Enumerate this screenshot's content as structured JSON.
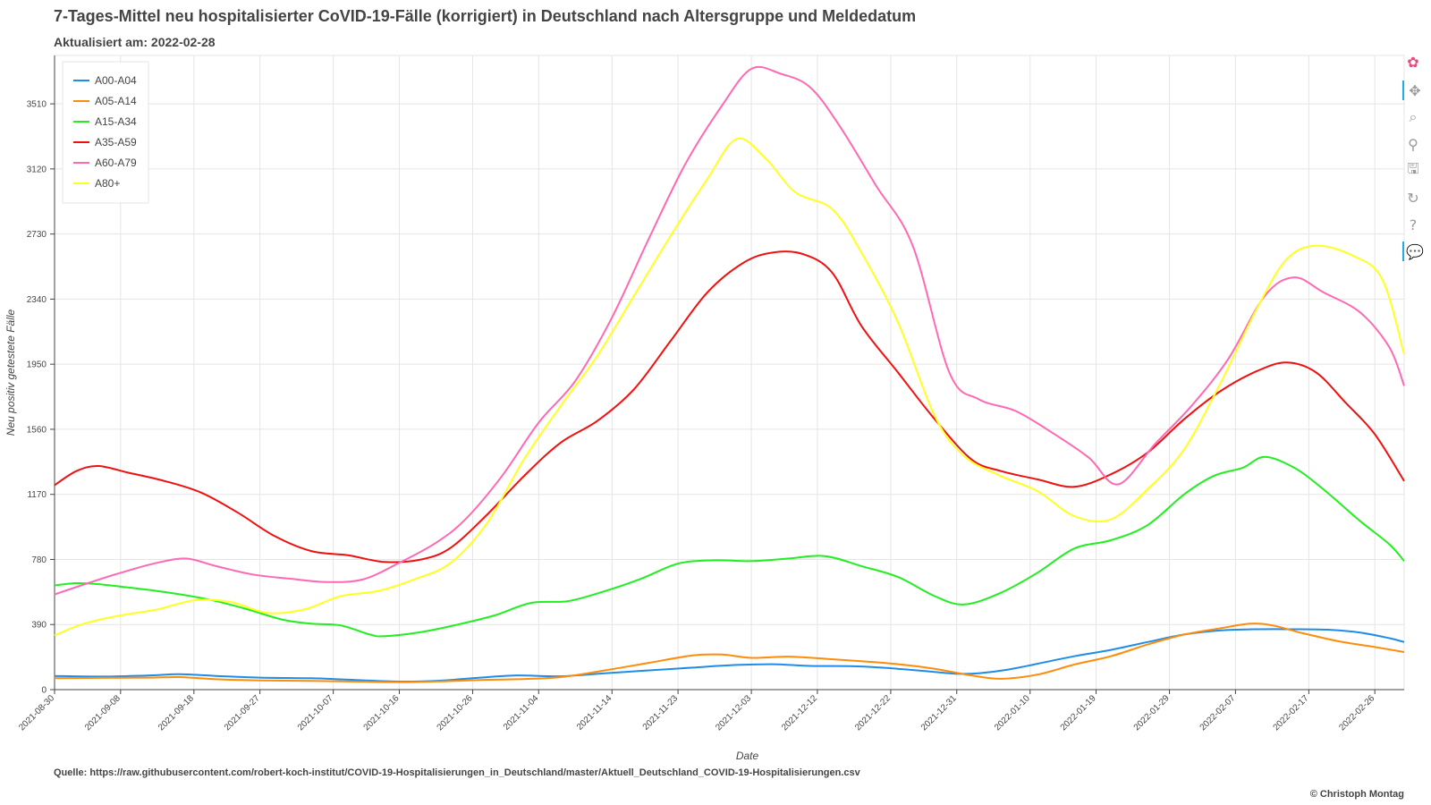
{
  "header": {
    "title": "7-Tages-Mittel neu hospitalisierter CoVID-19-Fälle (korrigiert) in Deutschland nach Altersgruppe und Meldedatum",
    "subtitle": "Aktualisiert am: 2022-02-28"
  },
  "footer": {
    "source": "Quelle: https://raw.githubusercontent.com/robert-koch-institut/COVID-19-Hospitalisierungen_in_Deutschland/master/Aktuell_Deutschland_COVID-19-Hospitalisierungen.csv",
    "copyright": "© Christoph Montag"
  },
  "toolbar": {
    "tools": [
      {
        "name": "bokeh-logo-icon",
        "glyph": "✿",
        "interactable": true
      },
      {
        "name": "pan-tool-icon",
        "glyph": "✥",
        "interactable": true
      },
      {
        "name": "box-zoom-tool-icon",
        "glyph": "⌕",
        "interactable": true
      },
      {
        "name": "wheel-zoom-tool-icon",
        "glyph": "⚲",
        "interactable": true
      },
      {
        "name": "save-tool-icon",
        "glyph": "🖫",
        "interactable": true
      },
      {
        "name": "reset-tool-icon",
        "glyph": "↻",
        "interactable": true
      },
      {
        "name": "help-tool-icon",
        "glyph": "?",
        "interactable": true
      },
      {
        "name": "hover-tool-icon",
        "glyph": "💬",
        "interactable": true
      }
    ]
  },
  "chart_data": {
    "type": "line",
    "xlabel": "Date",
    "ylabel": "Neu positiv getestete Fälle",
    "x_range": [
      "2021-08-30",
      "2022-03-02"
    ],
    "ylim": [
      0,
      3800
    ],
    "y_ticks": [
      0,
      390,
      780,
      1170,
      1560,
      1950,
      2340,
      2730,
      3120,
      3510
    ],
    "x_ticks": [
      "2021-08-30",
      "2021-09-08",
      "2021-09-18",
      "2021-09-27",
      "2021-10-07",
      "2021-10-16",
      "2021-10-26",
      "2021-11-04",
      "2021-11-14",
      "2021-11-23",
      "2021-12-03",
      "2021-12-12",
      "2021-12-22",
      "2021-12-31",
      "2022-01-10",
      "2022-01-19",
      "2022-01-29",
      "2022-02-07",
      "2022-02-17",
      "2022-02-26"
    ],
    "grid": true,
    "legend_position": "top-left",
    "series": [
      {
        "name": "A00-A04",
        "color": "#1f8de8",
        "points": [
          [
            "2021-08-30",
            82
          ],
          [
            "2021-09-05",
            78
          ],
          [
            "2021-09-12",
            85
          ],
          [
            "2021-09-16",
            92
          ],
          [
            "2021-09-21",
            82
          ],
          [
            "2021-09-27",
            72
          ],
          [
            "2021-10-04",
            68
          ],
          [
            "2021-10-10",
            58
          ],
          [
            "2021-10-16",
            48
          ],
          [
            "2021-10-22",
            55
          ],
          [
            "2021-10-27",
            72
          ],
          [
            "2021-11-01",
            85
          ],
          [
            "2021-11-07",
            80
          ],
          [
            "2021-11-13",
            98
          ],
          [
            "2021-11-19",
            115
          ],
          [
            "2021-11-25",
            132
          ],
          [
            "2021-12-01",
            148
          ],
          [
            "2021-12-06",
            152
          ],
          [
            "2021-12-11",
            142
          ],
          [
            "2021-12-17",
            140
          ],
          [
            "2021-12-22",
            128
          ],
          [
            "2021-12-27",
            110
          ],
          [
            "2021-12-31",
            95
          ],
          [
            "2022-01-03",
            98
          ],
          [
            "2022-01-07",
            120
          ],
          [
            "2022-01-11",
            155
          ],
          [
            "2022-01-16",
            200
          ],
          [
            "2022-01-21",
            238
          ],
          [
            "2022-01-26",
            285
          ],
          [
            "2022-01-31",
            330
          ],
          [
            "2022-02-05",
            355
          ],
          [
            "2022-02-10",
            362
          ],
          [
            "2022-02-15",
            362
          ],
          [
            "2022-02-20",
            358
          ],
          [
            "2022-02-24",
            342
          ],
          [
            "2022-02-28",
            308
          ],
          [
            "2022-03-02",
            285
          ]
        ]
      },
      {
        "name": "A05-A14",
        "color": "#ff8c0a",
        "points": [
          [
            "2021-08-30",
            68
          ],
          [
            "2021-09-05",
            70
          ],
          [
            "2021-09-12",
            72
          ],
          [
            "2021-09-16",
            75
          ],
          [
            "2021-09-21",
            62
          ],
          [
            "2021-09-27",
            55
          ],
          [
            "2021-10-04",
            52
          ],
          [
            "2021-10-10",
            48
          ],
          [
            "2021-10-16",
            45
          ],
          [
            "2021-10-22",
            50
          ],
          [
            "2021-10-27",
            58
          ],
          [
            "2021-11-01",
            62
          ],
          [
            "2021-11-07",
            75
          ],
          [
            "2021-11-13",
            115
          ],
          [
            "2021-11-19",
            160
          ],
          [
            "2021-11-25",
            205
          ],
          [
            "2021-11-29",
            210
          ],
          [
            "2021-12-03",
            190
          ],
          [
            "2021-12-08",
            198
          ],
          [
            "2021-12-13",
            185
          ],
          [
            "2021-12-18",
            170
          ],
          [
            "2021-12-23",
            152
          ],
          [
            "2021-12-28",
            125
          ],
          [
            "2022-01-02",
            85
          ],
          [
            "2022-01-06",
            65
          ],
          [
            "2022-01-11",
            90
          ],
          [
            "2022-01-16",
            150
          ],
          [
            "2022-01-21",
            200
          ],
          [
            "2022-01-26",
            270
          ],
          [
            "2022-01-31",
            330
          ],
          [
            "2022-02-05",
            368
          ],
          [
            "2022-02-09",
            395
          ],
          [
            "2022-02-12",
            385
          ],
          [
            "2022-02-16",
            340
          ],
          [
            "2022-02-21",
            290
          ],
          [
            "2022-02-26",
            255
          ],
          [
            "2022-03-02",
            225
          ]
        ]
      },
      {
        "name": "A15-A34",
        "color": "#22ee22",
        "points": [
          [
            "2021-08-30",
            625
          ],
          [
            "2021-09-02",
            638
          ],
          [
            "2021-09-05",
            632
          ],
          [
            "2021-09-09",
            612
          ],
          [
            "2021-09-14",
            585
          ],
          [
            "2021-09-20",
            540
          ],
          [
            "2021-09-25",
            485
          ],
          [
            "2021-09-30",
            420
          ],
          [
            "2021-10-04",
            395
          ],
          [
            "2021-10-08",
            385
          ],
          [
            "2021-10-12",
            330
          ],
          [
            "2021-10-14",
            320
          ],
          [
            "2021-10-19",
            345
          ],
          [
            "2021-10-24",
            390
          ],
          [
            "2021-10-29",
            445
          ],
          [
            "2021-11-03",
            520
          ],
          [
            "2021-11-08",
            530
          ],
          [
            "2021-11-13",
            590
          ],
          [
            "2021-11-18",
            665
          ],
          [
            "2021-11-23",
            755
          ],
          [
            "2021-11-28",
            775
          ],
          [
            "2021-12-03",
            770
          ],
          [
            "2021-12-08",
            785
          ],
          [
            "2021-12-13",
            800
          ],
          [
            "2021-12-18",
            740
          ],
          [
            "2021-12-23",
            675
          ],
          [
            "2021-12-28",
            560
          ],
          [
            "2022-01-01",
            510
          ],
          [
            "2022-01-06",
            580
          ],
          [
            "2022-01-11",
            700
          ],
          [
            "2022-01-16",
            845
          ],
          [
            "2022-01-21",
            895
          ],
          [
            "2022-01-26",
            985
          ],
          [
            "2022-01-31",
            1170
          ],
          [
            "2022-02-04",
            1280
          ],
          [
            "2022-02-08",
            1330
          ],
          [
            "2022-02-11",
            1395
          ],
          [
            "2022-02-15",
            1330
          ],
          [
            "2022-02-19",
            1200
          ],
          [
            "2022-02-24",
            1010
          ],
          [
            "2022-02-28",
            870
          ],
          [
            "2022-03-02",
            770
          ]
        ]
      },
      {
        "name": "A35-A59",
        "color": "#f01010",
        "points": [
          [
            "2021-08-30",
            1225
          ],
          [
            "2021-09-02",
            1310
          ],
          [
            "2021-09-05",
            1340
          ],
          [
            "2021-09-09",
            1300
          ],
          [
            "2021-09-14",
            1250
          ],
          [
            "2021-09-19",
            1180
          ],
          [
            "2021-09-24",
            1060
          ],
          [
            "2021-09-29",
            920
          ],
          [
            "2021-10-04",
            830
          ],
          [
            "2021-10-09",
            805
          ],
          [
            "2021-10-14",
            765
          ],
          [
            "2021-10-19",
            780
          ],
          [
            "2021-10-23",
            850
          ],
          [
            "2021-10-28",
            1050
          ],
          [
            "2021-11-02",
            1280
          ],
          [
            "2021-11-07",
            1480
          ],
          [
            "2021-11-12",
            1610
          ],
          [
            "2021-11-17",
            1800
          ],
          [
            "2021-11-22",
            2090
          ],
          [
            "2021-11-27",
            2380
          ],
          [
            "2021-12-02",
            2560
          ],
          [
            "2021-12-06",
            2620
          ],
          [
            "2021-12-10",
            2610
          ],
          [
            "2021-12-14",
            2500
          ],
          [
            "2021-12-18",
            2180
          ],
          [
            "2021-12-23",
            1900
          ],
          [
            "2021-12-28",
            1620
          ],
          [
            "2022-01-02",
            1380
          ],
          [
            "2022-01-06",
            1310
          ],
          [
            "2022-01-11",
            1260
          ],
          [
            "2022-01-16",
            1215
          ],
          [
            "2022-01-21",
            1290
          ],
          [
            "2022-01-26",
            1420
          ],
          [
            "2022-01-31",
            1620
          ],
          [
            "2022-02-05",
            1790
          ],
          [
            "2022-02-10",
            1910
          ],
          [
            "2022-02-14",
            1960
          ],
          [
            "2022-02-18",
            1900
          ],
          [
            "2022-02-22",
            1720
          ],
          [
            "2022-02-26",
            1530
          ],
          [
            "2022-03-02",
            1250
          ]
        ]
      },
      {
        "name": "A60-A79",
        "color": "#ff69b4",
        "points": [
          [
            "2021-08-30",
            570
          ],
          [
            "2021-09-03",
            630
          ],
          [
            "2021-09-08",
            700
          ],
          [
            "2021-09-13",
            760
          ],
          [
            "2021-09-17",
            785
          ],
          [
            "2021-09-21",
            740
          ],
          [
            "2021-09-26",
            690
          ],
          [
            "2021-10-01",
            665
          ],
          [
            "2021-10-06",
            645
          ],
          [
            "2021-10-11",
            660
          ],
          [
            "2021-10-16",
            760
          ],
          [
            "2021-10-21",
            880
          ],
          [
            "2021-10-25",
            1020
          ],
          [
            "2021-10-30",
            1280
          ],
          [
            "2021-11-04",
            1600
          ],
          [
            "2021-11-09",
            1850
          ],
          [
            "2021-11-14",
            2230
          ],
          [
            "2021-11-19",
            2700
          ],
          [
            "2021-11-24",
            3150
          ],
          [
            "2021-11-29",
            3500
          ],
          [
            "2021-12-03",
            3720
          ],
          [
            "2021-12-07",
            3690
          ],
          [
            "2021-12-11",
            3610
          ],
          [
            "2021-12-15",
            3380
          ],
          [
            "2021-12-20",
            3020
          ],
          [
            "2021-12-25",
            2660
          ],
          [
            "2021-12-30",
            1900
          ],
          [
            "2022-01-03",
            1740
          ],
          [
            "2022-01-08",
            1670
          ],
          [
            "2022-01-13",
            1540
          ],
          [
            "2022-01-18",
            1390
          ],
          [
            "2022-01-22",
            1230
          ],
          [
            "2022-01-27",
            1470
          ],
          [
            "2022-02-01",
            1700
          ],
          [
            "2022-02-06",
            1980
          ],
          [
            "2022-02-11",
            2360
          ],
          [
            "2022-02-15",
            2470
          ],
          [
            "2022-02-19",
            2380
          ],
          [
            "2022-02-24",
            2260
          ],
          [
            "2022-02-28",
            2050
          ],
          [
            "2022-03-02",
            1820
          ]
        ]
      },
      {
        "name": "A80+",
        "color": "#ffff22",
        "points": [
          [
            "2021-08-30",
            325
          ],
          [
            "2021-09-03",
            395
          ],
          [
            "2021-09-08",
            445
          ],
          [
            "2021-09-13",
            480
          ],
          [
            "2021-09-18",
            535
          ],
          [
            "2021-09-23",
            525
          ],
          [
            "2021-09-28",
            460
          ],
          [
            "2021-10-03",
            480
          ],
          [
            "2021-10-08",
            560
          ],
          [
            "2021-10-13",
            590
          ],
          [
            "2021-10-18",
            660
          ],
          [
            "2021-10-23",
            760
          ],
          [
            "2021-10-28",
            1000
          ],
          [
            "2021-11-02",
            1380
          ],
          [
            "2021-11-07",
            1700
          ],
          [
            "2021-11-12",
            2000
          ],
          [
            "2021-11-17",
            2360
          ],
          [
            "2021-11-22",
            2720
          ],
          [
            "2021-11-27",
            3060
          ],
          [
            "2021-12-01",
            3300
          ],
          [
            "2021-12-05",
            3180
          ],
          [
            "2021-12-09",
            2980
          ],
          [
            "2021-12-14",
            2880
          ],
          [
            "2021-12-18",
            2620
          ],
          [
            "2021-12-23",
            2200
          ],
          [
            "2021-12-28",
            1640
          ],
          [
            "2022-01-01",
            1400
          ],
          [
            "2022-01-06",
            1280
          ],
          [
            "2022-01-11",
            1190
          ],
          [
            "2022-01-16",
            1040
          ],
          [
            "2022-01-21",
            1020
          ],
          [
            "2022-01-26",
            1200
          ],
          [
            "2022-01-31",
            1440
          ],
          [
            "2022-02-05",
            1840
          ],
          [
            "2022-02-10",
            2290
          ],
          [
            "2022-02-14",
            2580
          ],
          [
            "2022-02-18",
            2660
          ],
          [
            "2022-02-23",
            2600
          ],
          [
            "2022-02-27",
            2460
          ],
          [
            "2022-03-02",
            2010
          ]
        ]
      }
    ]
  }
}
